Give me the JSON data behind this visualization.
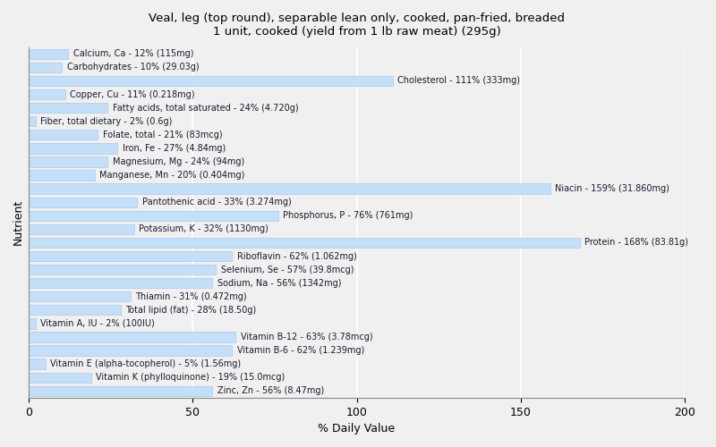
{
  "title": "Veal, leg (top round), separable lean only, cooked, pan-fried, breaded\n1 unit, cooked (yield from 1 lb raw meat) (295g)",
  "xlabel": "% Daily Value",
  "ylabel": "Nutrient",
  "background_color": "#f0f0f0",
  "bar_color": "#c5dff8",
  "bar_edge_color": "#a8c8f0",
  "xlim": [
    0,
    200
  ],
  "xticks": [
    0,
    50,
    100,
    150,
    200
  ],
  "nutrients": [
    {
      "label": "Calcium, Ca - 12% (115mg)",
      "value": 12
    },
    {
      "label": "Carbohydrates - 10% (29.03g)",
      "value": 10
    },
    {
      "label": "Cholesterol - 111% (333mg)",
      "value": 111
    },
    {
      "label": "Copper, Cu - 11% (0.218mg)",
      "value": 11
    },
    {
      "label": "Fatty acids, total saturated - 24% (4.720g)",
      "value": 24
    },
    {
      "label": "Fiber, total dietary - 2% (0.6g)",
      "value": 2
    },
    {
      "label": "Folate, total - 21% (83mcg)",
      "value": 21
    },
    {
      "label": "Iron, Fe - 27% (4.84mg)",
      "value": 27
    },
    {
      "label": "Magnesium, Mg - 24% (94mg)",
      "value": 24
    },
    {
      "label": "Manganese, Mn - 20% (0.404mg)",
      "value": 20
    },
    {
      "label": "Niacin - 159% (31.860mg)",
      "value": 159
    },
    {
      "label": "Pantothenic acid - 33% (3.274mg)",
      "value": 33
    },
    {
      "label": "Phosphorus, P - 76% (761mg)",
      "value": 76
    },
    {
      "label": "Potassium, K - 32% (1130mg)",
      "value": 32
    },
    {
      "label": "Protein - 168% (83.81g)",
      "value": 168
    },
    {
      "label": "Riboflavin - 62% (1.062mg)",
      "value": 62
    },
    {
      "label": "Selenium, Se - 57% (39.8mcg)",
      "value": 57
    },
    {
      "label": "Sodium, Na - 56% (1342mg)",
      "value": 56
    },
    {
      "label": "Thiamin - 31% (0.472mg)",
      "value": 31
    },
    {
      "label": "Total lipid (fat) - 28% (18.50g)",
      "value": 28
    },
    {
      "label": "Vitamin A, IU - 2% (100IU)",
      "value": 2
    },
    {
      "label": "Vitamin B-12 - 63% (3.78mcg)",
      "value": 63
    },
    {
      "label": "Vitamin B-6 - 62% (1.239mg)",
      "value": 62
    },
    {
      "label": "Vitamin E (alpha-tocopherol) - 5% (1.56mg)",
      "value": 5
    },
    {
      "label": "Vitamin K (phylloquinone) - 19% (15.0mcg)",
      "value": 19
    },
    {
      "label": "Zinc, Zn - 56% (8.47mg)",
      "value": 56
    }
  ]
}
